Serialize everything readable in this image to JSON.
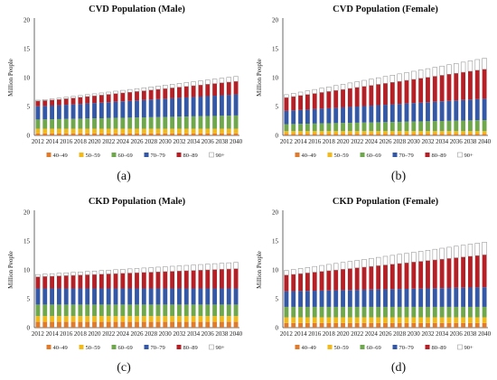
{
  "colors": {
    "40-49": "#e07b2e",
    "50-59": "#f2b91b",
    "60-69": "#6fa84c",
    "70-79": "#3458a5",
    "80-89": "#b42025",
    "90+": "#ffffff"
  },
  "chart_data": [
    {
      "type": "bar",
      "stacked": true,
      "title": "CVD Population (Male)",
      "ylabel": "Million People",
      "ylim": [
        0,
        20
      ],
      "yticks": [
        0,
        5,
        10,
        15,
        20
      ],
      "caption": "(a)",
      "categories": [
        "2012",
        "2013",
        "2014",
        "2015",
        "2016",
        "2017",
        "2018",
        "2019",
        "2020",
        "2021",
        "2022",
        "2023",
        "2024",
        "2025",
        "2026",
        "2027",
        "2028",
        "2029",
        "2030",
        "2031",
        "2032",
        "2033",
        "2034",
        "2035",
        "2036",
        "2037",
        "2038",
        "2039",
        "2040"
      ],
      "xtick_labels": [
        "2012",
        "2014",
        "2016",
        "2018",
        "2020",
        "2022",
        "2024",
        "2026",
        "2028",
        "2030",
        "2032",
        "2034",
        "2036",
        "2038",
        "2040"
      ],
      "series": [
        {
          "name": "40–49",
          "values": [
            0.35,
            0.35,
            0.35,
            0.35,
            0.35,
            0.35,
            0.35,
            0.35,
            0.35,
            0.35,
            0.35,
            0.35,
            0.35,
            0.35,
            0.35,
            0.35,
            0.35,
            0.35,
            0.35,
            0.35,
            0.35,
            0.35,
            0.35,
            0.35,
            0.35,
            0.35,
            0.35,
            0.35,
            0.35
          ]
        },
        {
          "name": "50–59",
          "values": [
            0.8,
            0.8,
            0.8,
            0.8,
            0.8,
            0.8,
            0.8,
            0.8,
            0.8,
            0.8,
            0.8,
            0.8,
            0.8,
            0.8,
            0.8,
            0.8,
            0.8,
            0.8,
            0.8,
            0.8,
            0.8,
            0.8,
            0.8,
            0.8,
            0.8,
            0.8,
            0.8,
            0.8,
            0.8
          ]
        },
        {
          "name": "60–69",
          "values": [
            1.6,
            1.62,
            1.64,
            1.67,
            1.7,
            1.72,
            1.75,
            1.78,
            1.8,
            1.82,
            1.85,
            1.88,
            1.9,
            1.92,
            1.95,
            1.97,
            2.0,
            2.02,
            2.05,
            2.07,
            2.1,
            2.12,
            2.15,
            2.17,
            2.2,
            2.22,
            2.25,
            2.27,
            2.3
          ]
        },
        {
          "name": "70–79",
          "values": [
            2.3,
            2.33,
            2.37,
            2.4,
            2.45,
            2.5,
            2.55,
            2.6,
            2.65,
            2.7,
            2.75,
            2.8,
            2.85,
            2.9,
            2.95,
            3.0,
            3.05,
            3.1,
            3.15,
            3.2,
            3.25,
            3.3,
            3.35,
            3.4,
            3.45,
            3.5,
            3.55,
            3.6,
            3.65
          ]
        },
        {
          "name": "80–89",
          "values": [
            0.9,
            0.93,
            0.97,
            1.0,
            1.05,
            1.1,
            1.15,
            1.2,
            1.25,
            1.3,
            1.35,
            1.4,
            1.45,
            1.5,
            1.55,
            1.6,
            1.65,
            1.7,
            1.75,
            1.8,
            1.85,
            1.9,
            1.95,
            2.0,
            2.05,
            2.1,
            2.15,
            2.2,
            2.25
          ]
        },
        {
          "name": "90+",
          "values": [
            0.15,
            0.17,
            0.2,
            0.22,
            0.25,
            0.28,
            0.3,
            0.33,
            0.35,
            0.38,
            0.4,
            0.43,
            0.45,
            0.48,
            0.5,
            0.53,
            0.55,
            0.58,
            0.6,
            0.63,
            0.65,
            0.68,
            0.7,
            0.73,
            0.75,
            0.78,
            0.8,
            0.83,
            0.85
          ]
        }
      ]
    },
    {
      "type": "bar",
      "stacked": true,
      "title": "CVD Population (Female)",
      "ylabel": "Million People",
      "ylim": [
        0,
        20
      ],
      "yticks": [
        0,
        5,
        10,
        15,
        20
      ],
      "caption": "(b)",
      "categories": [
        "2012",
        "2013",
        "2014",
        "2015",
        "2016",
        "2017",
        "2018",
        "2019",
        "2020",
        "2021",
        "2022",
        "2023",
        "2024",
        "2025",
        "2026",
        "2027",
        "2028",
        "2029",
        "2030",
        "2031",
        "2032",
        "2033",
        "2034",
        "2035",
        "2036",
        "2037",
        "2038",
        "2039",
        "2040"
      ],
      "xtick_labels": [
        "2012",
        "2014",
        "2016",
        "2018",
        "2020",
        "2022",
        "2024",
        "2026",
        "2028",
        "2030",
        "2032",
        "2034",
        "2036",
        "2038",
        "2040"
      ],
      "series": [
        {
          "name": "40–49",
          "values": [
            0.25,
            0.25,
            0.25,
            0.25,
            0.25,
            0.25,
            0.25,
            0.25,
            0.25,
            0.25,
            0.25,
            0.25,
            0.25,
            0.25,
            0.25,
            0.25,
            0.25,
            0.25,
            0.25,
            0.25,
            0.25,
            0.25,
            0.25,
            0.25,
            0.25,
            0.25,
            0.25,
            0.25,
            0.25
          ]
        },
        {
          "name": "50–59",
          "values": [
            0.5,
            0.5,
            0.5,
            0.5,
            0.5,
            0.5,
            0.5,
            0.5,
            0.5,
            0.5,
            0.5,
            0.5,
            0.5,
            0.5,
            0.5,
            0.5,
            0.5,
            0.5,
            0.5,
            0.5,
            0.5,
            0.5,
            0.5,
            0.5,
            0.5,
            0.5,
            0.5,
            0.5,
            0.5
          ]
        },
        {
          "name": "60–69",
          "values": [
            1.2,
            1.22,
            1.25,
            1.27,
            1.3,
            1.33,
            1.35,
            1.38,
            1.4,
            1.43,
            1.45,
            1.48,
            1.5,
            1.53,
            1.55,
            1.58,
            1.6,
            1.63,
            1.65,
            1.68,
            1.7,
            1.73,
            1.75,
            1.78,
            1.8,
            1.83,
            1.85,
            1.88,
            1.9
          ]
        },
        {
          "name": "70–79",
          "values": [
            2.3,
            2.35,
            2.4,
            2.45,
            2.5,
            2.55,
            2.6,
            2.65,
            2.7,
            2.75,
            2.8,
            2.85,
            2.9,
            2.95,
            3.0,
            3.05,
            3.1,
            3.15,
            3.2,
            3.25,
            3.3,
            3.35,
            3.4,
            3.45,
            3.5,
            3.55,
            3.6,
            3.65,
            3.7
          ]
        },
        {
          "name": "80–89",
          "values": [
            2.3,
            2.4,
            2.5,
            2.6,
            2.7,
            2.8,
            2.9,
            3.0,
            3.1,
            3.2,
            3.3,
            3.4,
            3.5,
            3.6,
            3.7,
            3.8,
            3.9,
            4.0,
            4.1,
            4.2,
            4.3,
            4.4,
            4.5,
            4.6,
            4.7,
            4.8,
            4.9,
            5.0,
            5.1
          ]
        },
        {
          "name": "90+",
          "values": [
            0.5,
            0.55,
            0.6,
            0.65,
            0.7,
            0.75,
            0.8,
            0.85,
            0.9,
            0.95,
            1.0,
            1.05,
            1.1,
            1.15,
            1.2,
            1.25,
            1.3,
            1.35,
            1.4,
            1.45,
            1.5,
            1.55,
            1.6,
            1.65,
            1.7,
            1.75,
            1.8,
            1.85,
            1.9
          ]
        }
      ]
    },
    {
      "type": "bar",
      "stacked": true,
      "title": "CKD Population (Male)",
      "ylabel": "Million People",
      "ylim": [
        0,
        20
      ],
      "yticks": [
        0,
        5,
        10,
        15,
        20
      ],
      "caption": "(c)",
      "categories": [
        "2012",
        "2013",
        "2014",
        "2015",
        "2016",
        "2017",
        "2018",
        "2019",
        "2020",
        "2021",
        "2022",
        "2023",
        "2024",
        "2025",
        "2026",
        "2027",
        "2028",
        "2029",
        "2030",
        "2031",
        "2032",
        "2033",
        "2034",
        "2035",
        "2036",
        "2037",
        "2038",
        "2039",
        "2040"
      ],
      "xtick_labels": [
        "2012",
        "2014",
        "2016",
        "2018",
        "2020",
        "2022",
        "2024",
        "2026",
        "2028",
        "2030",
        "2032",
        "2034",
        "2036",
        "2038",
        "2040"
      ],
      "series": [
        {
          "name": "40–49",
          "values": [
            1.0,
            1.0,
            1.0,
            1.0,
            1.0,
            1.0,
            1.0,
            1.0,
            1.0,
            1.0,
            1.0,
            1.0,
            1.0,
            1.0,
            1.0,
            1.0,
            1.0,
            1.0,
            1.0,
            1.0,
            1.0,
            1.0,
            1.0,
            1.0,
            1.0,
            1.0,
            1.0,
            1.0,
            1.0
          ]
        },
        {
          "name": "50–59",
          "values": [
            1.0,
            1.0,
            1.0,
            1.0,
            1.0,
            1.0,
            1.0,
            1.0,
            1.0,
            1.0,
            1.0,
            1.0,
            1.0,
            1.0,
            1.0,
            1.0,
            1.0,
            1.0,
            1.0,
            1.0,
            1.0,
            1.0,
            1.0,
            1.0,
            1.0,
            1.0,
            1.0,
            1.0,
            1.0
          ]
        },
        {
          "name": "60–69",
          "values": [
            2.0,
            2.0,
            2.0,
            2.0,
            2.0,
            2.0,
            2.0,
            2.0,
            2.0,
            2.0,
            2.0,
            2.0,
            2.0,
            2.0,
            2.0,
            2.0,
            2.0,
            2.0,
            2.0,
            2.0,
            2.0,
            2.0,
            2.0,
            2.0,
            2.0,
            2.0,
            2.0,
            2.0,
            2.0
          ]
        },
        {
          "name": "70–79",
          "values": [
            2.8,
            2.8,
            2.8,
            2.8,
            2.8,
            2.8,
            2.8,
            2.8,
            2.8,
            2.8,
            2.8,
            2.8,
            2.8,
            2.8,
            2.8,
            2.8,
            2.8,
            2.8,
            2.8,
            2.8,
            2.8,
            2.8,
            2.8,
            2.8,
            2.8,
            2.8,
            2.8,
            2.8,
            2.8
          ]
        },
        {
          "name": "80–89",
          "values": [
            2.0,
            2.05,
            2.1,
            2.15,
            2.2,
            2.25,
            2.3,
            2.35,
            2.4,
            2.45,
            2.5,
            2.55,
            2.6,
            2.65,
            2.7,
            2.75,
            2.8,
            2.85,
            2.9,
            2.95,
            3.0,
            3.05,
            3.1,
            3.15,
            3.2,
            3.25,
            3.3,
            3.35,
            3.4
          ]
        },
        {
          "name": "90+",
          "values": [
            0.4,
            0.42,
            0.45,
            0.47,
            0.5,
            0.53,
            0.55,
            0.58,
            0.6,
            0.63,
            0.65,
            0.68,
            0.7,
            0.73,
            0.75,
            0.78,
            0.8,
            0.83,
            0.85,
            0.88,
            0.9,
            0.93,
            0.95,
            0.98,
            1.0,
            1.03,
            1.05,
            1.08,
            1.1
          ]
        }
      ]
    },
    {
      "type": "bar",
      "stacked": true,
      "title": "CKD Population (Female)",
      "ylabel": "Million People",
      "ylim": [
        0,
        20
      ],
      "yticks": [
        0,
        5,
        10,
        15,
        20
      ],
      "caption": "(d)",
      "categories": [
        "2012",
        "2013",
        "2014",
        "2015",
        "2016",
        "2017",
        "2018",
        "2019",
        "2020",
        "2021",
        "2022",
        "2023",
        "2024",
        "2025",
        "2026",
        "2027",
        "2028",
        "2029",
        "2030",
        "2031",
        "2032",
        "2033",
        "2034",
        "2035",
        "2036",
        "2037",
        "2038",
        "2039",
        "2040"
      ],
      "xtick_labels": [
        "2012",
        "2014",
        "2016",
        "2018",
        "2020",
        "2022",
        "2024",
        "2026",
        "2028",
        "2030",
        "2032",
        "2034",
        "2036",
        "2038",
        "2040"
      ],
      "series": [
        {
          "name": "40–49",
          "values": [
            0.8,
            0.8,
            0.8,
            0.8,
            0.8,
            0.8,
            0.8,
            0.8,
            0.8,
            0.8,
            0.8,
            0.8,
            0.8,
            0.8,
            0.8,
            0.8,
            0.8,
            0.8,
            0.8,
            0.8,
            0.8,
            0.8,
            0.8,
            0.8,
            0.8,
            0.8,
            0.8,
            0.8,
            0.8
          ]
        },
        {
          "name": "50–59",
          "values": [
            1.0,
            1.0,
            1.0,
            1.0,
            1.0,
            1.0,
            1.0,
            1.0,
            1.0,
            1.0,
            1.0,
            1.0,
            1.0,
            1.0,
            1.0,
            1.0,
            1.0,
            1.0,
            1.0,
            1.0,
            1.0,
            1.0,
            1.0,
            1.0,
            1.0,
            1.0,
            1.0,
            1.0,
            1.0
          ]
        },
        {
          "name": "60–69",
          "values": [
            1.8,
            1.8,
            1.8,
            1.8,
            1.8,
            1.8,
            1.8,
            1.8,
            1.8,
            1.8,
            1.8,
            1.8,
            1.8,
            1.8,
            1.8,
            1.8,
            1.8,
            1.8,
            1.8,
            1.8,
            1.8,
            1.8,
            1.8,
            1.8,
            1.8,
            1.8,
            1.8,
            1.8,
            1.8
          ]
        },
        {
          "name": "70–79",
          "values": [
            2.7,
            2.72,
            2.75,
            2.77,
            2.8,
            2.82,
            2.85,
            2.87,
            2.9,
            2.92,
            2.95,
            2.97,
            3.0,
            3.02,
            3.05,
            3.07,
            3.1,
            3.12,
            3.15,
            3.17,
            3.2,
            3.22,
            3.25,
            3.27,
            3.3,
            3.32,
            3.35,
            3.37,
            3.4
          ]
        },
        {
          "name": "80–89",
          "values": [
            2.8,
            2.9,
            3.0,
            3.1,
            3.2,
            3.3,
            3.4,
            3.5,
            3.6,
            3.7,
            3.8,
            3.9,
            4.0,
            4.1,
            4.2,
            4.3,
            4.4,
            4.5,
            4.6,
            4.7,
            4.8,
            4.9,
            5.0,
            5.1,
            5.2,
            5.3,
            5.4,
            5.5,
            5.6
          ]
        },
        {
          "name": "90+",
          "values": [
            0.8,
            0.85,
            0.9,
            0.95,
            1.0,
            1.05,
            1.1,
            1.15,
            1.2,
            1.25,
            1.3,
            1.35,
            1.4,
            1.45,
            1.5,
            1.55,
            1.6,
            1.65,
            1.7,
            1.75,
            1.8,
            1.85,
            1.9,
            1.95,
            2.0,
            2.05,
            2.1,
            2.15,
            2.2
          ]
        }
      ]
    }
  ]
}
